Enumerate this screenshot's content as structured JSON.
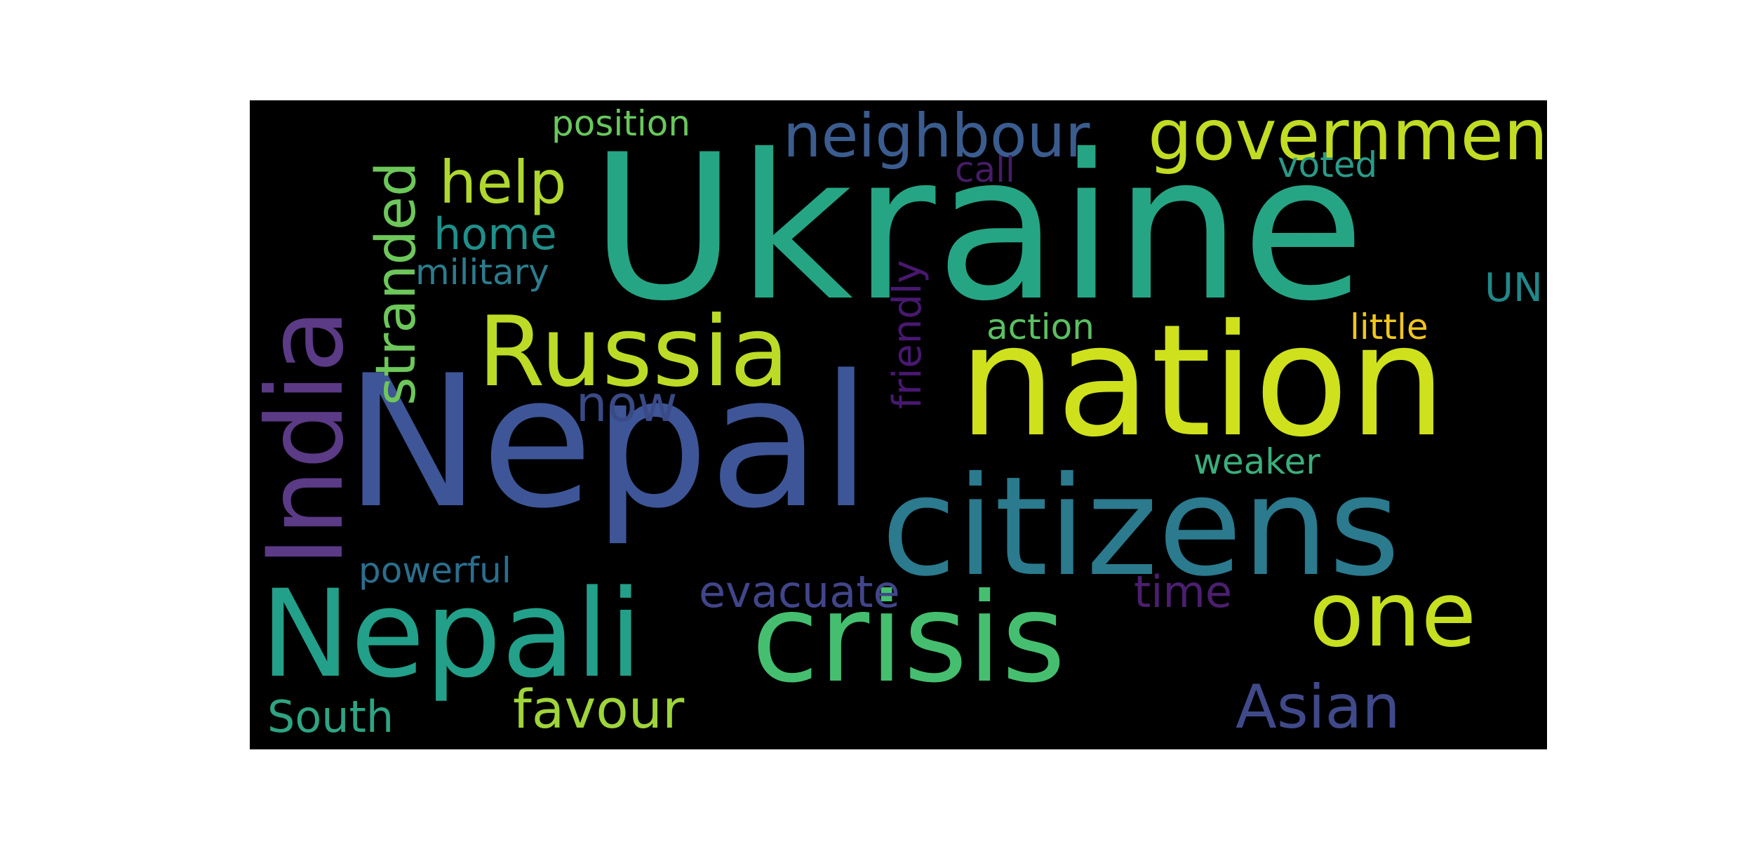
{
  "colors": {
    "background": "#000000",
    "page": "#ffffff"
  },
  "words": [
    {
      "text": "Ukraine",
      "color": "#26a584"
    },
    {
      "text": "Nepal",
      "color": "#3e5697"
    },
    {
      "text": "nation",
      "color": "#cfe11c"
    },
    {
      "text": "citizens",
      "color": "#2b7a8e"
    },
    {
      "text": "crisis",
      "color": "#45bf6f"
    },
    {
      "text": "Nepali",
      "color": "#23a089"
    },
    {
      "text": "India",
      "color": "#5b3a86"
    },
    {
      "text": "Russia",
      "color": "#bcdb26"
    },
    {
      "text": "one",
      "color": "#c6df1f"
    },
    {
      "text": "government",
      "color": "#c1dc23"
    },
    {
      "text": "neighbour",
      "color": "#3b5c8f"
    },
    {
      "text": "help",
      "color": "#b0d72e"
    },
    {
      "text": "stranded",
      "color": "#6dc75a"
    },
    {
      "text": "home",
      "color": "#1f8f8a"
    },
    {
      "text": "military",
      "color": "#2c7c8d"
    },
    {
      "text": "position",
      "color": "#68c85c"
    },
    {
      "text": "call",
      "color": "#471c68"
    },
    {
      "text": "voted",
      "color": "#2a9a88"
    },
    {
      "text": "UN",
      "color": "#20888b"
    },
    {
      "text": "friendly",
      "color": "#481870"
    },
    {
      "text": "action",
      "color": "#5ac062"
    },
    {
      "text": "little",
      "color": "#f0c61e"
    },
    {
      "text": "now",
      "color": "#3a4a86"
    },
    {
      "text": "weaker",
      "color": "#3bae7c"
    },
    {
      "text": "powerful",
      "color": "#2b6e8e"
    },
    {
      "text": "evacuate",
      "color": "#41458a"
    },
    {
      "text": "time",
      "color": "#4b1f6f"
    },
    {
      "text": "favour",
      "color": "#9fd43a"
    },
    {
      "text": "Asian",
      "color": "#404a8a"
    },
    {
      "text": "South",
      "color": "#2ea482"
    }
  ]
}
